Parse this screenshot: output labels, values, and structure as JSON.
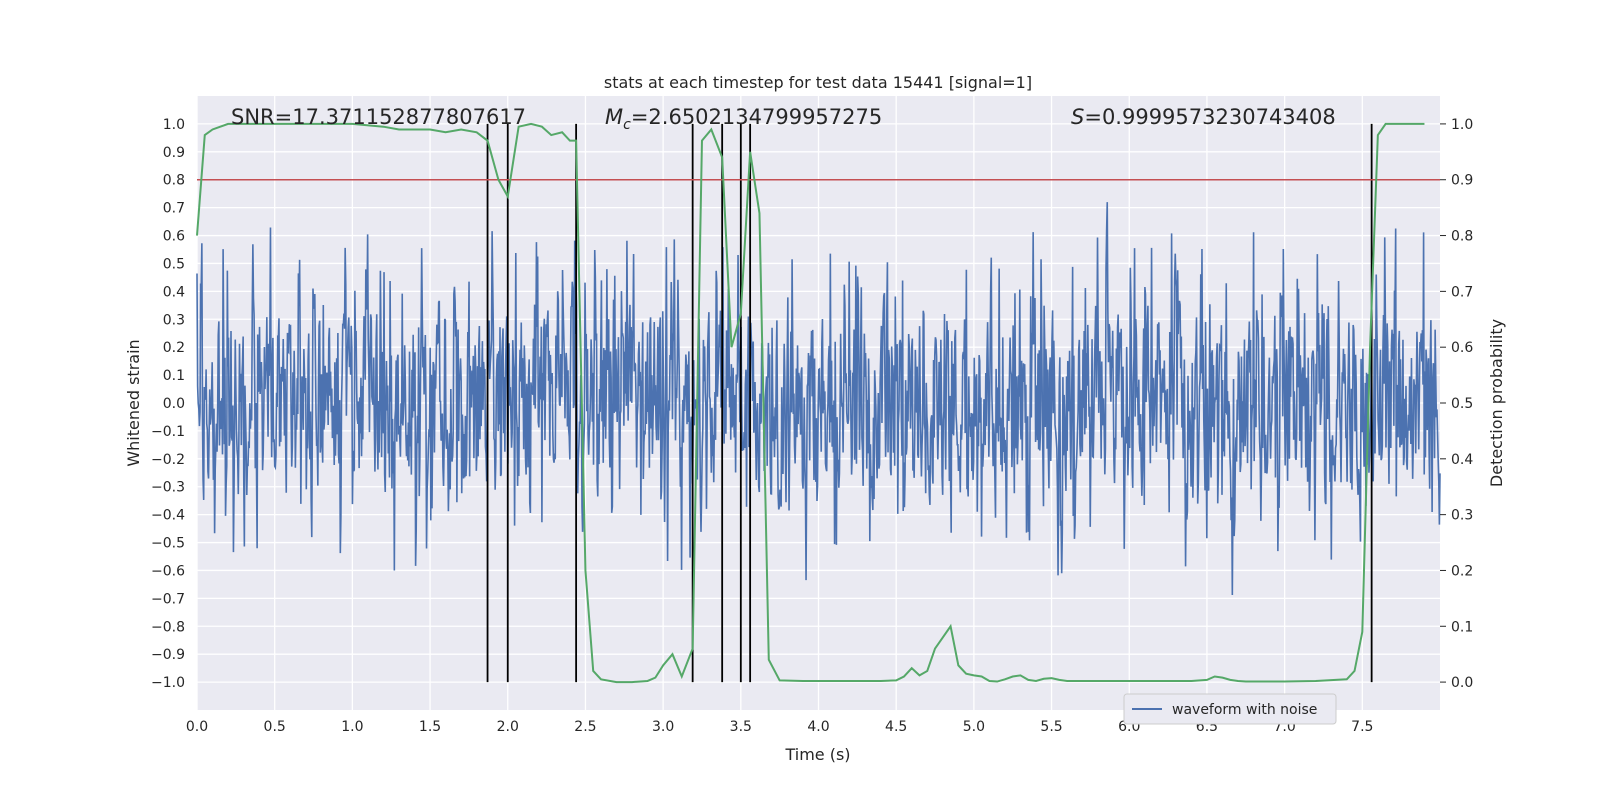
{
  "chart_data": {
    "type": "line",
    "title": "stats at each timestep for test data 15441 [signal=1]",
    "xlabel": "Time (s)",
    "ylabel": "Whitened strain",
    "ylabel_right": "Detection probability",
    "xlim": [
      0.0,
      8.0
    ],
    "ylim": [
      -1.1,
      1.1
    ],
    "ylim_right": [
      -0.05,
      1.05
    ],
    "x_ticks": [
      "0.0",
      "0.5",
      "1.0",
      "1.5",
      "2.0",
      "2.5",
      "3.0",
      "3.5",
      "4.0",
      "4.5",
      "5.0",
      "5.5",
      "6.0",
      "6.5",
      "7.0",
      "7.5"
    ],
    "y_ticks": [
      "1.0",
      "0.9",
      "0.8",
      "0.7",
      "0.6",
      "0.5",
      "0.4",
      "0.3",
      "0.2",
      "0.1",
      "0.0",
      "−0.1",
      "−0.2",
      "−0.3",
      "−0.4",
      "−0.5",
      "−0.6",
      "−0.7",
      "−0.8",
      "−0.9",
      "−1.0"
    ],
    "y_right_ticks": [
      "1.0",
      "0.9",
      "0.8",
      "0.7",
      "0.6",
      "0.5",
      "0.4",
      "0.3",
      "0.2",
      "0.1",
      "0.0"
    ],
    "grid": true,
    "legend_position": "lower-right",
    "annotations": {
      "snr": "SNR=17.371152877807617",
      "mc": "=2.6502134799957275",
      "mc_symbol": "M",
      "mc_sub": "c",
      "s": "=0.9999573230743408",
      "s_symbol": "S"
    },
    "threshold": {
      "value": 0.9,
      "axis": "right",
      "color": "#c44e52"
    },
    "vertical_lines": [
      1.87,
      2.0,
      2.44,
      3.19,
      3.38,
      3.5,
      3.56,
      7.56
    ],
    "series": [
      {
        "name": "waveform with noise",
        "axis": "left",
        "color": "#4c72b0",
        "style": "noise",
        "x_range": [
          0.0,
          8.0
        ],
        "n_samples": 2048,
        "band": 0.42,
        "max_abs": 1.0
      },
      {
        "axis": "right",
        "color": "#55a868",
        "x": [
          0.0,
          0.05,
          0.1,
          0.2,
          0.3,
          0.5,
          0.8,
          1.0,
          1.2,
          1.3,
          1.5,
          1.6,
          1.7,
          1.8,
          1.87,
          1.94,
          2.0,
          2.07,
          2.15,
          2.22,
          2.28,
          2.35,
          2.4,
          2.44,
          2.5,
          2.55,
          2.6,
          2.7,
          2.8,
          2.9,
          2.95,
          3.0,
          3.06,
          3.12,
          3.19,
          3.25,
          3.31,
          3.38,
          3.44,
          3.5,
          3.56,
          3.62,
          3.68,
          3.75,
          3.9,
          4.0,
          4.2,
          4.4,
          4.5,
          4.55,
          4.6,
          4.65,
          4.7,
          4.75,
          4.8,
          4.85,
          4.9,
          4.95,
          5.0,
          5.05,
          5.1,
          5.15,
          5.2,
          5.25,
          5.3,
          5.35,
          5.4,
          5.45,
          5.5,
          5.55,
          5.6,
          5.65,
          5.7,
          5.8,
          6.0,
          6.2,
          6.4,
          6.5,
          6.55,
          6.6,
          6.65,
          6.7,
          6.75,
          6.8,
          7.0,
          7.2,
          7.4,
          7.45,
          7.5,
          7.55,
          7.6,
          7.65,
          7.7,
          7.8,
          7.9
        ],
        "y": [
          0.8,
          0.98,
          0.99,
          1.0,
          1.0,
          1.0,
          1.0,
          1.0,
          0.995,
          0.99,
          0.99,
          0.985,
          0.99,
          0.985,
          0.97,
          0.9,
          0.87,
          0.995,
          1.0,
          0.995,
          0.98,
          0.985,
          0.97,
          0.97,
          0.2,
          0.02,
          0.005,
          0.0,
          0.0,
          0.002,
          0.008,
          0.03,
          0.05,
          0.01,
          0.06,
          0.97,
          0.99,
          0.94,
          0.6,
          0.66,
          0.95,
          0.84,
          0.04,
          0.003,
          0.002,
          0.002,
          0.002,
          0.002,
          0.003,
          0.01,
          0.025,
          0.012,
          0.02,
          0.06,
          0.08,
          0.1,
          0.03,
          0.015,
          0.012,
          0.01,
          0.002,
          0.001,
          0.005,
          0.01,
          0.012,
          0.004,
          0.002,
          0.006,
          0.007,
          0.004,
          0.002,
          0.002,
          0.002,
          0.002,
          0.002,
          0.002,
          0.002,
          0.004,
          0.01,
          0.008,
          0.004,
          0.002,
          0.001,
          0.001,
          0.001,
          0.002,
          0.005,
          0.02,
          0.09,
          0.6,
          0.98,
          1.0,
          1.0,
          1.0,
          1.0
        ]
      }
    ]
  }
}
